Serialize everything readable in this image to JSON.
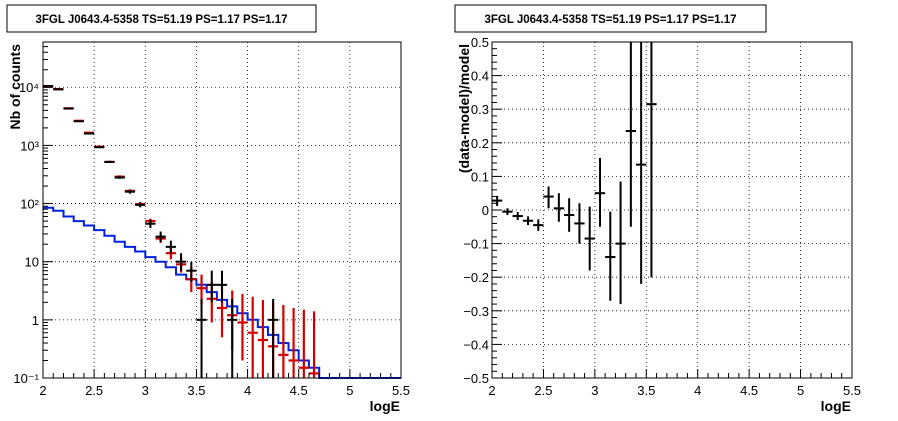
{
  "colors": {
    "data": "#000000",
    "model": "#d40000",
    "source": "#0022dd",
    "grid": "#000000",
    "frame": "#000000"
  },
  "chart_data": [
    {
      "type": "scatter",
      "title": "3FGL J0643.4-5358 TS=51.19 PS=1.17 PS=1.17",
      "xlabel": "logE",
      "ylabel": "Nb of counts",
      "xlim": [
        2,
        5.5
      ],
      "ylim": [
        0.1,
        60000
      ],
      "yscale": "log",
      "grid": true,
      "x_ticks": [
        "2",
        "2.5",
        "3",
        "3.5",
        "4",
        "4.5",
        "5",
        "5.5"
      ],
      "y_ticks": [
        "10⁻¹",
        "1",
        "10",
        "10²",
        "10³",
        "10⁴"
      ],
      "series": [
        {
          "kind": "data",
          "x": [
            2.05,
            2.15,
            2.25,
            2.35,
            2.45,
            2.55,
            2.65,
            2.75,
            2.85,
            2.95,
            3.05,
            3.15,
            3.25,
            3.35,
            3.45,
            3.55,
            3.65,
            3.75,
            3.85,
            4.25
          ],
          "y": [
            10500,
            9200,
            4300,
            2600,
            1600,
            930,
            520,
            280,
            160,
            95,
            45,
            27,
            18,
            10,
            7,
            1,
            4,
            4,
            1,
            1
          ],
          "ylo": [
            10300,
            9000,
            4200,
            2550,
            1550,
            900,
            500,
            265,
            148,
            86,
            38,
            22,
            14,
            7,
            4.5,
            0.1,
            2,
            2,
            0.1,
            0.1
          ],
          "yhi": [
            10700,
            9400,
            4400,
            2650,
            1650,
            960,
            545,
            300,
            175,
            106,
            53,
            33,
            23,
            14,
            10,
            2.3,
            7,
            7,
            2.3,
            2.3
          ],
          "xerr": 0.05
        },
        {
          "kind": "model",
          "x": [
            2.05,
            2.15,
            2.25,
            2.35,
            2.45,
            2.55,
            2.65,
            2.75,
            2.85,
            2.95,
            3.05,
            3.15,
            3.25,
            3.35,
            3.45,
            3.55,
            3.65,
            3.75,
            3.85,
            3.95,
            4.05,
            4.15,
            4.25,
            4.35,
            4.45,
            4.55,
            4.65
          ],
          "y": [
            10200,
            9300,
            4350,
            2650,
            1650,
            950,
            520,
            290,
            165,
            98,
            50,
            25,
            14,
            9,
            5,
            3.5,
            2.3,
            1.6,
            1.2,
            0.9,
            0.6,
            0.45,
            0.35,
            0.25,
            0.2,
            0.15,
            0.12
          ],
          "ylo": [
            10000,
            9100,
            4250,
            2600,
            1600,
            920,
            500,
            275,
            155,
            90,
            45,
            21,
            11,
            6.5,
            3,
            1.8,
            0.9,
            0.5,
            0.3,
            0.2,
            0.1,
            0.1,
            0.1,
            0.1,
            0.1,
            0.1,
            0.1
          ],
          "yhi": [
            10400,
            9500,
            4450,
            2700,
            1700,
            980,
            540,
            305,
            175,
            106,
            55,
            29,
            17,
            12,
            8,
            6,
            4.5,
            3.8,
            3.2,
            2.8,
            2.5,
            2.2,
            2.0,
            1.8,
            1.6,
            1.5,
            1.4
          ],
          "xerr": 0.05
        },
        {
          "kind": "source",
          "edges": [
            2.0,
            2.1,
            2.2,
            2.3,
            2.4,
            2.5,
            2.6,
            2.7,
            2.8,
            2.9,
            3.0,
            3.1,
            3.2,
            3.3,
            3.4,
            3.5,
            3.6,
            3.7,
            3.8,
            3.9,
            4.0,
            4.1,
            4.2,
            4.3,
            4.4,
            4.5,
            4.6,
            4.7,
            4.8,
            4.9,
            5.0,
            5.1,
            5.2,
            5.3,
            5.4,
            5.5
          ],
          "values": [
            85,
            75,
            60,
            50,
            42,
            35,
            28,
            22,
            18,
            15,
            12,
            10,
            8,
            6,
            5,
            4,
            3,
            2.2,
            1.7,
            1.3,
            1,
            0.75,
            0.55,
            0.4,
            0.3,
            0.2,
            0.15,
            0.1,
            0.1,
            0.1,
            0.1,
            0.1,
            0.1,
            0.1,
            0.1
          ]
        }
      ]
    },
    {
      "type": "scatter",
      "title": "3FGL J0643.4-5358 TS=51.19 PS=1.17 PS=1.17",
      "xlabel": "logE",
      "ylabel": "(data-model)/model",
      "xlim": [
        2,
        5.5
      ],
      "ylim": [
        -0.5,
        0.5
      ],
      "yscale": "linear",
      "grid": true,
      "x_ticks": [
        "2",
        "2.5",
        "3",
        "3.5",
        "4",
        "4.5",
        "5",
        "5.5"
      ],
      "y_ticks": [
        "−0.5",
        "−0.4",
        "−0.3",
        "−0.2",
        "−0.1",
        "0",
        "0.1",
        "0.2",
        "0.3",
        "0.4",
        "0.5"
      ],
      "series": [
        {
          "kind": "residuals",
          "x": [
            2.05,
            2.15,
            2.25,
            2.35,
            2.45,
            2.55,
            2.65,
            2.75,
            2.85,
            2.95,
            3.05,
            3.15,
            3.25,
            3.35,
            3.45,
            3.55
          ],
          "y": [
            0.028,
            -0.005,
            -0.018,
            -0.032,
            -0.045,
            0.04,
            0.005,
            -0.015,
            -0.04,
            -0.085,
            0.05,
            -0.14,
            -0.1,
            0.235,
            0.135,
            0.315
          ],
          "ylo": [
            0.012,
            -0.015,
            -0.03,
            -0.045,
            -0.062,
            0.005,
            -0.035,
            -0.065,
            -0.1,
            -0.18,
            -0.05,
            -0.27,
            -0.28,
            -0.05,
            -0.22,
            -0.2
          ],
          "yhi": [
            0.042,
            0.005,
            -0.006,
            -0.019,
            -0.028,
            0.07,
            0.05,
            0.035,
            0.02,
            0.01,
            0.155,
            -0.005,
            0.085,
            0.5,
            0.5,
            0.5
          ],
          "xerr": 0.05
        }
      ]
    }
  ]
}
